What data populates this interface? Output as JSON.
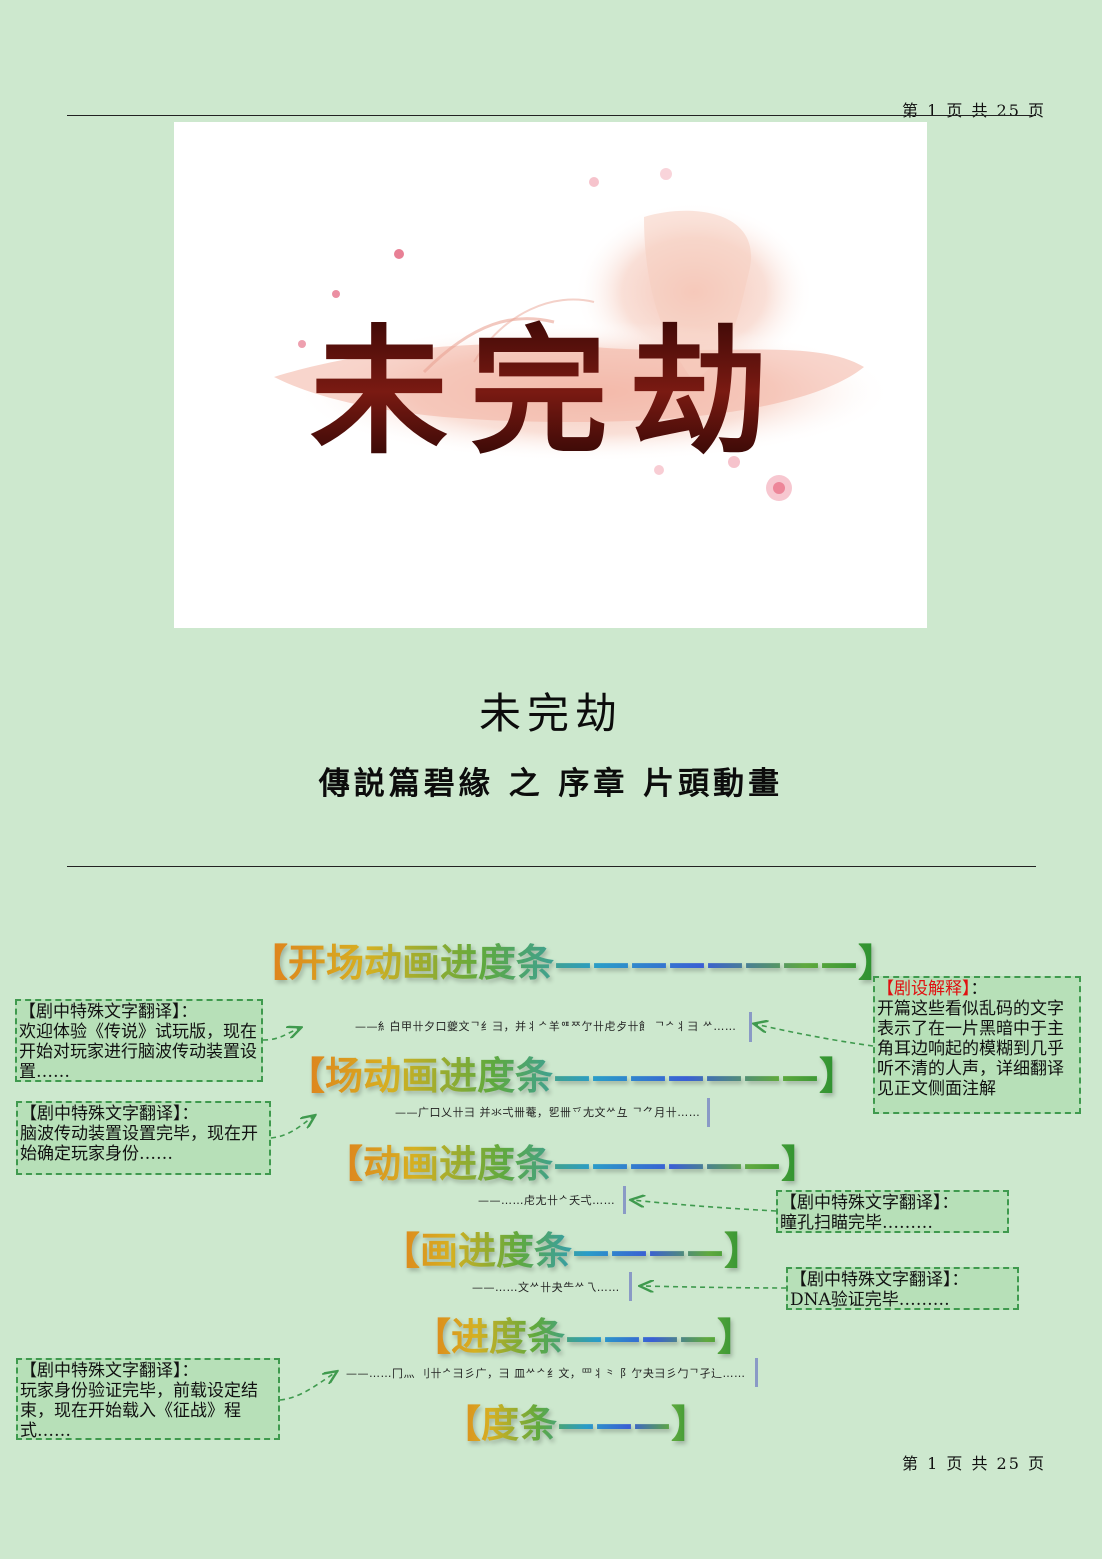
{
  "header": {
    "page_number": "第 1 页 共 25 页"
  },
  "footer": {
    "page_number": "第 1 页 共 25 页"
  },
  "hero_logo": {
    "text": "未完劫",
    "colors": {
      "ink": "#5a0f0c",
      "wash": "#f4bfb0",
      "petal": "#e2607a"
    }
  },
  "title": {
    "main": "未完劫",
    "subtitle": "傳説篇碧緣 之 序章 片頭動畫"
  },
  "progress_titles": [
    "【开场动画进度条————————】",
    "【场动画进度条———————】",
    "【动画进度条——————】",
    "【画进度条————】",
    "【进度条————】",
    "【度条———】"
  ],
  "garbled_lines": [
    "——糹白甲卄夕口夔文ᄀ纟彐，并丬ᄼ羊ᅋᄍ亇卄虍歺卄飠 ᄀᄼ丬彐 ᄽ……",
    "——广口乂卄彐 并氺弌卌菴，乮卌乊尢文ᄽ彑 ᄀ⺈月卄……",
    "——……虍尢卄ᄼ夭弌……",
    "——……文ᄽ卄夬⺧ᄽ乁……",
    "——……冂灬 刂卄ᄼ彐彡广，彐 皿ᄽᄼ纟文，罒丬⺀ 阝亇夬彐彡勹ᄀ孑辶……"
  ],
  "notes": [
    {
      "head": "【剧中特殊文字翻译】：",
      "body": "欢迎体验《传说》试玩版，现在开始对玩家进行脑波传动装置设置……"
    },
    {
      "head": "【剧中特殊文字翻译】：",
      "body": "脑波传动装置设置完毕，现在开始确定玩家身份……"
    },
    {
      "head": "【剧中特殊文字翻译】：",
      "body": "瞳孔扫瞄完毕………"
    },
    {
      "head": "【剧中特殊文字翻译】：",
      "body": "DNA验证完毕………"
    },
    {
      "head": "【剧中特殊文字翻译】：",
      "body": "玩家身份验证完毕，前载设定结束，现在开始载入《征战》程式……"
    }
  ],
  "setting_note": {
    "head": "【剧设解释】",
    "head_suffix": "：",
    "body": "开篇这些看似乱码的文字表示了在一片黑暗中于主角耳边响起的模糊到几乎听不清的人声，详细翻译见正文侧面注解"
  },
  "colors": {
    "background": "#cde8ce",
    "note_fill": "#b7e0b8",
    "note_border": "#3f9a4e",
    "cursor": "#8a9ac6",
    "highlight_red": "#e01010"
  }
}
